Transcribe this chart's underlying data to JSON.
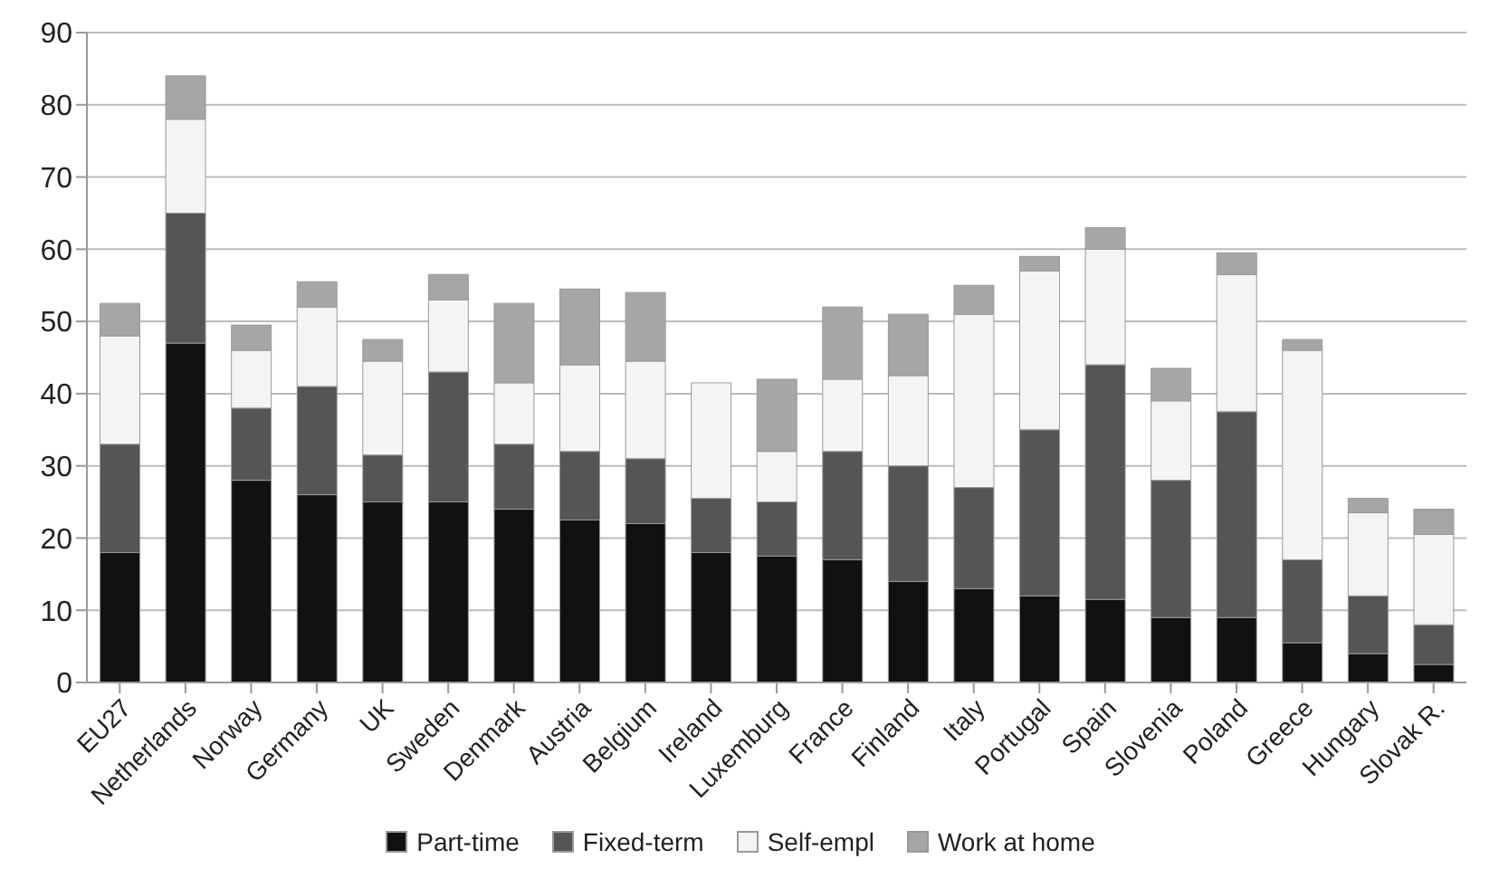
{
  "chart_data": {
    "type": "bar",
    "stacked": true,
    "categories": [
      "EU27",
      "Netherlands",
      "Norway",
      "Germany",
      "UK",
      "Sweden",
      "Denmark",
      "Austria",
      "Belgium",
      "Ireland",
      "Luxemburg",
      "France",
      "Finland",
      "Italy",
      "Portugal",
      "Spain",
      "Slovenia",
      "Poland",
      "Greece",
      "Hungary",
      "Slovak R."
    ],
    "series": [
      {
        "name": "Part-time",
        "color": "#111111",
        "values": [
          18,
          47,
          28,
          26,
          25,
          25,
          24,
          22.5,
          22,
          18,
          17.5,
          17,
          14,
          13,
          12,
          11.5,
          9,
          9,
          5.5,
          4,
          2.5
        ]
      },
      {
        "name": "Fixed-term",
        "color": "#555555",
        "values": [
          15,
          18,
          10,
          15,
          6.5,
          18,
          9,
          9.5,
          9,
          7.5,
          7.5,
          15,
          16,
          14,
          23,
          32.5,
          19,
          28.5,
          11.5,
          8,
          5.5
        ]
      },
      {
        "name": "Self-empl",
        "color": "#f4f4f4",
        "values": [
          15,
          13,
          8,
          11,
          13,
          10,
          8.5,
          12,
          13.5,
          16,
          7,
          10,
          12.5,
          24,
          22,
          16,
          11,
          19,
          29,
          11.5,
          12.5
        ]
      },
      {
        "name": "Work at home",
        "color": "#a6a6a6",
        "values": [
          4.5,
          6,
          3.5,
          3.5,
          3,
          3.5,
          11,
          10.5,
          9.5,
          0,
          10,
          10,
          8.5,
          4,
          2,
          3,
          4.5,
          3,
          1.5,
          2,
          3.5
        ]
      }
    ],
    "ylim": [
      0,
      90
    ],
    "yticks": [
      0,
      10,
      20,
      30,
      40,
      50,
      60,
      70,
      80,
      90
    ],
    "grid": "y",
    "legend": "bottom"
  }
}
